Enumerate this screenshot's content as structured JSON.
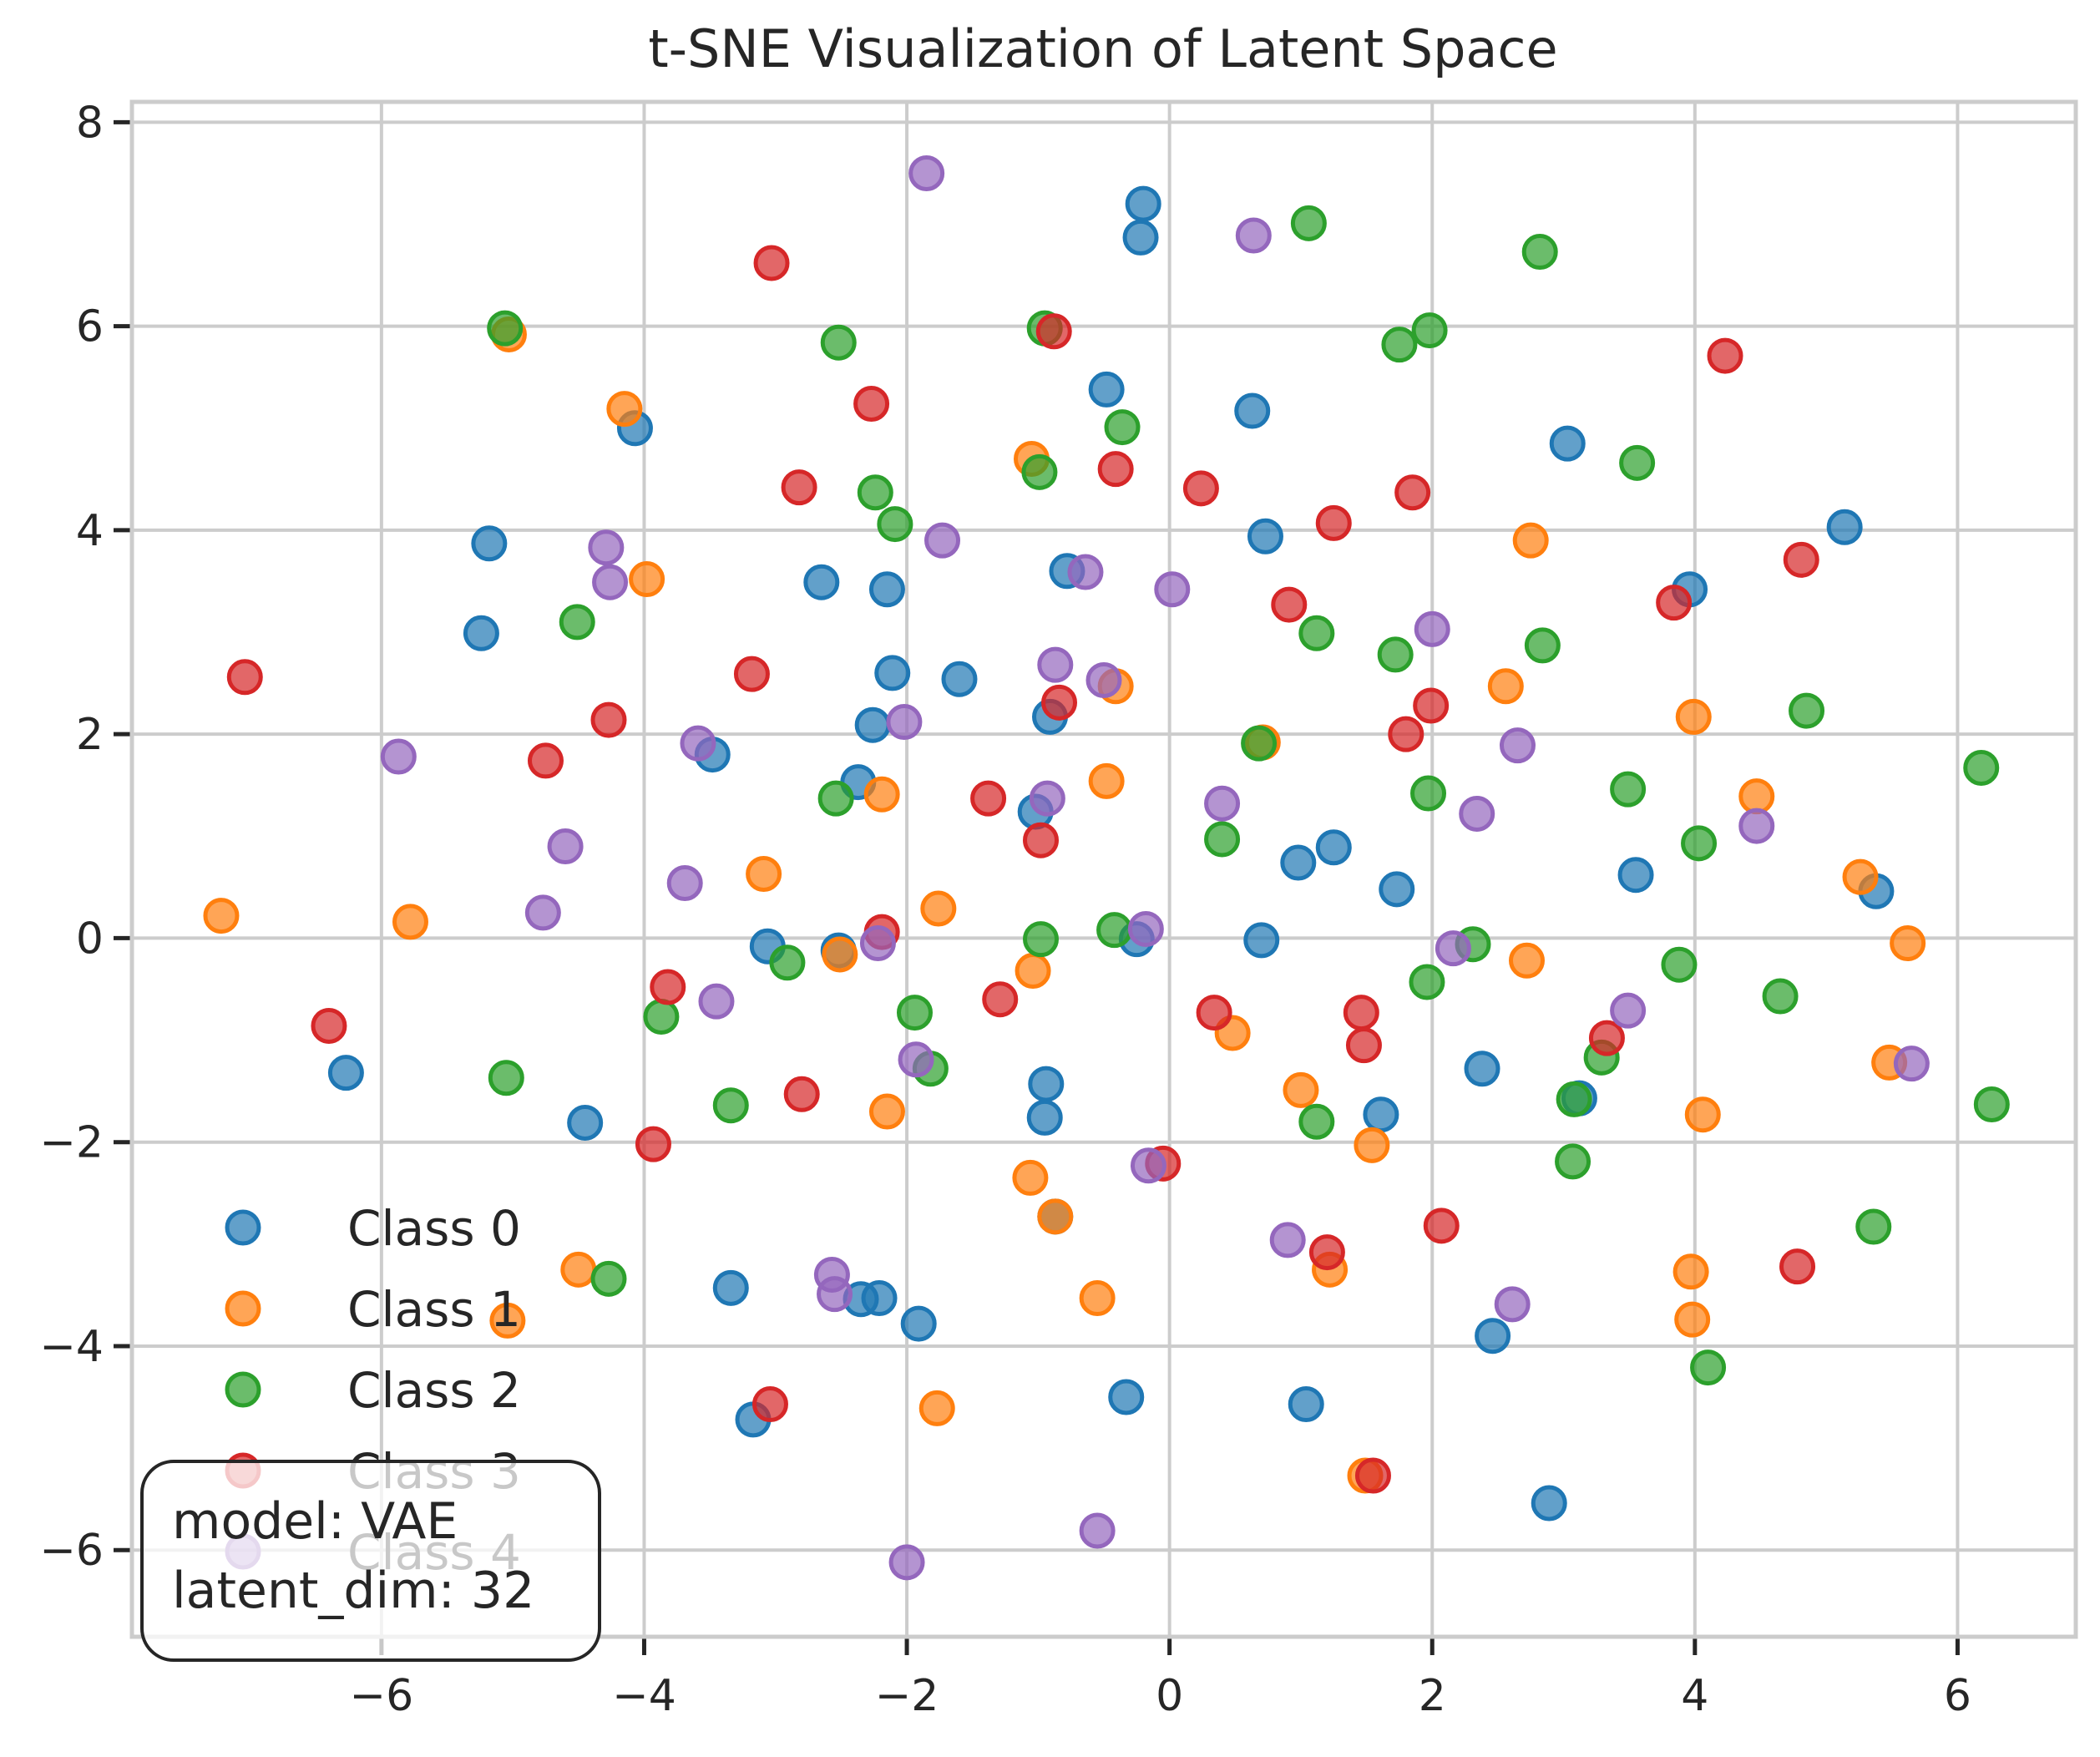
{
  "chart_data": {
    "type": "scatter",
    "title": "t-SNE Visualization of Latent Space",
    "xlabel": "",
    "ylabel": "",
    "xlim": [
      -7.9,
      6.9
    ],
    "ylim": [
      -6.85,
      8.2
    ],
    "xticks": [
      -6,
      -4,
      -2,
      0,
      2,
      4,
      6
    ],
    "yticks": [
      -6,
      -4,
      -2,
      0,
      2,
      4,
      6,
      8
    ],
    "xtick_labels": [
      "−6",
      "−4",
      "−2",
      "0",
      "2",
      "4",
      "6"
    ],
    "ytick_labels": [
      "−6",
      "−4",
      "−2",
      "0",
      "2",
      "4",
      "6",
      "8"
    ],
    "grid": true,
    "legend_placement": "lower-left",
    "annotation": {
      "line1": "model: VAE",
      "line2": "latent_dim: 32"
    },
    "series": [
      {
        "name": "Class 0",
        "color": "#1f77b4",
        "points": [
          [
            -0.2,
            7.2
          ],
          [
            -0.22,
            6.87
          ],
          [
            -0.48,
            5.38
          ],
          [
            0.63,
            5.17
          ],
          [
            -4.07,
            5.0
          ],
          [
            3.03,
            4.85
          ],
          [
            5.14,
            4.03
          ],
          [
            -5.18,
            3.87
          ],
          [
            0.73,
            3.94
          ],
          [
            -0.78,
            3.6
          ],
          [
            3.96,
            3.42
          ],
          [
            -2.65,
            3.49
          ],
          [
            -2.15,
            3.42
          ],
          [
            -5.24,
            2.99
          ],
          [
            -2.11,
            2.6
          ],
          [
            -1.6,
            2.54
          ],
          [
            -0.91,
            2.17
          ],
          [
            -2.26,
            2.09
          ],
          [
            -3.48,
            1.8
          ],
          [
            -2.37,
            1.53
          ],
          [
            -1.02,
            1.24
          ],
          [
            0.98,
            0.74
          ],
          [
            1.25,
            0.89
          ],
          [
            1.73,
            0.48
          ],
          [
            3.55,
            0.62
          ],
          [
            5.38,
            0.46
          ],
          [
            -3.06,
            -0.08
          ],
          [
            -2.52,
            -0.12
          ],
          [
            -0.25,
            -0.01
          ],
          [
            0.7,
            -0.02
          ],
          [
            -6.27,
            -1.32
          ],
          [
            -0.94,
            -1.43
          ],
          [
            -0.95,
            -1.76
          ],
          [
            2.38,
            -1.28
          ],
          [
            3.12,
            -1.57
          ],
          [
            1.61,
            -1.73
          ],
          [
            -4.45,
            -1.81
          ],
          [
            -0.87,
            -2.73
          ],
          [
            -3.34,
            -3.43
          ],
          [
            -2.35,
            -3.54
          ],
          [
            -2.21,
            -3.53
          ],
          [
            -1.91,
            -3.78
          ],
          [
            2.46,
            -3.9
          ],
          [
            -0.33,
            -4.5
          ],
          [
            1.04,
            -4.57
          ],
          [
            -3.17,
            -4.72
          ],
          [
            2.89,
            -5.54
          ]
        ]
      },
      {
        "name": "Class 1",
        "color": "#ff7f0e",
        "points": [
          [
            -5.03,
            5.92
          ],
          [
            -4.15,
            5.19
          ],
          [
            -1.05,
            4.7
          ],
          [
            2.75,
            3.9
          ],
          [
            -3.98,
            3.52
          ],
          [
            -0.41,
            2.47
          ],
          [
            2.56,
            2.47
          ],
          [
            3.99,
            2.17
          ],
          [
            0.71,
            1.92
          ],
          [
            -0.48,
            1.54
          ],
          [
            -2.19,
            1.41
          ],
          [
            4.47,
            1.39
          ],
          [
            -3.09,
            0.63
          ],
          [
            -7.22,
            0.22
          ],
          [
            -5.78,
            0.16
          ],
          [
            -1.76,
            0.29
          ],
          [
            5.26,
            0.6
          ],
          [
            -2.51,
            -0.16
          ],
          [
            -1.04,
            -0.32
          ],
          [
            2.72,
            -0.22
          ],
          [
            5.62,
            -0.05
          ],
          [
            0.48,
            -0.93
          ],
          [
            5.48,
            -1.22
          ],
          [
            1.0,
            -1.49
          ],
          [
            -2.15,
            -1.7
          ],
          [
            4.06,
            -1.73
          ],
          [
            1.54,
            -2.03
          ],
          [
            -1.06,
            -2.35
          ],
          [
            -0.87,
            -2.73
          ],
          [
            -4.5,
            -3.25
          ],
          [
            1.22,
            -3.25
          ],
          [
            3.97,
            -3.27
          ],
          [
            -0.55,
            -3.53
          ],
          [
            -5.04,
            -3.75
          ],
          [
            3.98,
            -3.74
          ],
          [
            -1.77,
            -4.61
          ],
          [
            1.49,
            -5.27
          ]
        ]
      },
      {
        "name": "Class 2",
        "color": "#2ca02c",
        "points": [
          [
            1.06,
            7.01
          ],
          [
            2.82,
            6.73
          ],
          [
            -5.06,
            5.98
          ],
          [
            -0.95,
            5.98
          ],
          [
            1.98,
            5.96
          ],
          [
            -2.52,
            5.84
          ],
          [
            1.75,
            5.82
          ],
          [
            -0.36,
            5.01
          ],
          [
            3.56,
            4.66
          ],
          [
            -0.99,
            4.57
          ],
          [
            -2.24,
            4.37
          ],
          [
            -2.09,
            4.06
          ],
          [
            -4.51,
            3.1
          ],
          [
            1.12,
            2.99
          ],
          [
            2.84,
            2.87
          ],
          [
            1.72,
            2.78
          ],
          [
            4.85,
            2.23
          ],
          [
            0.68,
            1.91
          ],
          [
            6.18,
            1.67
          ],
          [
            3.49,
            1.46
          ],
          [
            1.97,
            1.42
          ],
          [
            -2.54,
            1.37
          ],
          [
            0.4,
            0.97
          ],
          [
            4.03,
            0.93
          ],
          [
            -0.98,
            -0.01
          ],
          [
            -0.42,
            0.08
          ],
          [
            2.31,
            -0.06
          ],
          [
            -2.91,
            -0.24
          ],
          [
            3.88,
            -0.26
          ],
          [
            1.96,
            -0.43
          ],
          [
            4.65,
            -0.57
          ],
          [
            -1.94,
            -0.73
          ],
          [
            -3.87,
            -0.77
          ],
          [
            -1.82,
            -1.28
          ],
          [
            3.29,
            -1.17
          ],
          [
            -5.05,
            -1.37
          ],
          [
            3.08,
            -1.58
          ],
          [
            -3.34,
            -1.64
          ],
          [
            6.26,
            -1.63
          ],
          [
            1.12,
            -1.8
          ],
          [
            3.07,
            -2.19
          ],
          [
            5.36,
            -2.83
          ],
          [
            -4.27,
            -3.34
          ],
          [
            4.1,
            -4.21
          ]
        ]
      },
      {
        "name": "Class 3",
        "color": "#d62728",
        "points": [
          [
            -3.03,
            6.62
          ],
          [
            -0.88,
            5.95
          ],
          [
            4.23,
            5.71
          ],
          [
            -2.27,
            5.24
          ],
          [
            -2.82,
            4.42
          ],
          [
            -0.41,
            4.6
          ],
          [
            0.24,
            4.41
          ],
          [
            1.85,
            4.37
          ],
          [
            1.25,
            4.07
          ],
          [
            4.81,
            3.71
          ],
          [
            3.84,
            3.29
          ],
          [
            0.91,
            3.27
          ],
          [
            -7.04,
            2.56
          ],
          [
            -3.18,
            2.59
          ],
          [
            -0.84,
            2.31
          ],
          [
            1.99,
            2.28
          ],
          [
            -4.27,
            2.14
          ],
          [
            1.8,
            2.0
          ],
          [
            -4.75,
            1.74
          ],
          [
            -1.38,
            1.37
          ],
          [
            -0.98,
            0.96
          ],
          [
            -2.19,
            0.06
          ],
          [
            -6.4,
            -0.86
          ],
          [
            -3.82,
            -0.48
          ],
          [
            -1.29,
            -0.6
          ],
          [
            0.34,
            -0.73
          ],
          [
            1.46,
            -0.73
          ],
          [
            1.48,
            -1.05
          ],
          [
            3.33,
            -0.98
          ],
          [
            -2.8,
            -1.53
          ],
          [
            -3.93,
            -2.02
          ],
          [
            -0.05,
            -2.21
          ],
          [
            2.07,
            -2.82
          ],
          [
            1.2,
            -3.08
          ],
          [
            4.78,
            -3.22
          ],
          [
            -3.04,
            -4.57
          ],
          [
            1.55,
            -5.27
          ]
        ]
      },
      {
        "name": "Class 4",
        "color": "#9467bd",
        "points": [
          [
            -1.85,
            7.5
          ],
          [
            0.64,
            6.89
          ],
          [
            -4.29,
            3.83
          ],
          [
            -1.73,
            3.9
          ],
          [
            -4.26,
            3.49
          ],
          [
            -0.64,
            3.59
          ],
          [
            0.02,
            3.42
          ],
          [
            2.0,
            3.03
          ],
          [
            -0.87,
            2.68
          ],
          [
            -0.5,
            2.53
          ],
          [
            -2.02,
            2.12
          ],
          [
            -3.59,
            1.91
          ],
          [
            2.65,
            1.89
          ],
          [
            -5.87,
            1.78
          ],
          [
            -0.93,
            1.37
          ],
          [
            0.4,
            1.32
          ],
          [
            2.34,
            1.22
          ],
          [
            4.47,
            1.1
          ],
          [
            -4.6,
            0.9
          ],
          [
            -3.69,
            0.54
          ],
          [
            -4.77,
            0.25
          ],
          [
            -0.18,
            0.09
          ],
          [
            -2.22,
            -0.05
          ],
          [
            2.16,
            -0.1
          ],
          [
            -3.45,
            -0.62
          ],
          [
            3.49,
            -0.71
          ],
          [
            -1.93,
            -1.19
          ],
          [
            5.65,
            -1.23
          ],
          [
            -0.16,
            -2.23
          ],
          [
            0.9,
            -2.96
          ],
          [
            -2.57,
            -3.3
          ],
          [
            -2.55,
            -3.49
          ],
          [
            2.61,
            -3.59
          ],
          [
            -0.55,
            -5.81
          ],
          [
            -2.0,
            -6.12
          ]
        ]
      }
    ]
  }
}
